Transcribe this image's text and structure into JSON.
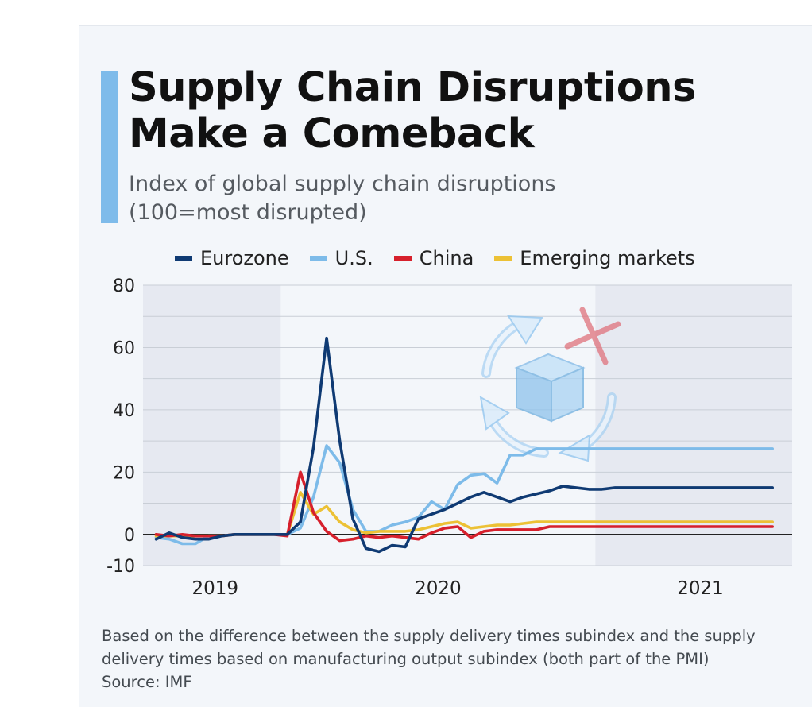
{
  "title_line1": "Supply Chain Disruptions",
  "title_line2": "Make a Comeback",
  "subtitle_line1": "Index of global supply chain disruptions",
  "subtitle_line2": "(100=most disrupted)",
  "note_line1": "Based on the difference between the supply delivery times subindex and the supply",
  "note_line2": "delivery times based on manufacturing output subindex (both part of the PMI)",
  "source": "Source: IMF",
  "colors": {
    "eurozone": "#0f3a73",
    "us": "#7dbbe9",
    "china": "#d6202c",
    "emerging": "#ecc135",
    "accent": "#7ebbea",
    "shade": "#e6e9f1"
  },
  "icon": "supply-chain-box-cycle-icon",
  "chart_data": {
    "type": "line",
    "ylim": [
      -10,
      80
    ],
    "yticks": [
      -10,
      0,
      20,
      40,
      60,
      80
    ],
    "x_tick_labels": [
      {
        "label": "2019",
        "x": 4.5
      },
      {
        "label": "2020",
        "x": 21.5
      },
      {
        "label": "2021",
        "x": 41.5
      }
    ],
    "shaded_x_ranges": [
      [
        -1,
        9.5
      ],
      [
        33.5,
        48.5
      ]
    ],
    "legend_position": "top",
    "grid": true,
    "x": [
      0,
      1,
      2,
      3,
      4,
      5,
      6,
      7,
      8,
      9,
      10,
      11,
      12,
      13,
      14,
      15,
      16,
      17,
      18,
      19,
      20,
      21,
      22,
      23,
      24,
      25,
      26,
      27,
      28,
      29,
      30,
      31,
      32,
      33,
      34,
      35,
      36,
      37,
      38,
      39,
      40,
      41,
      42,
      43,
      44,
      45,
      46,
      47
    ],
    "series": [
      {
        "name": "Eurozone",
        "key": "eurozone",
        "values": [
          -1.5,
          0.5,
          -1,
          -1.5,
          -1.5,
          -0.5,
          0,
          0,
          0,
          0,
          0,
          4,
          28,
          63,
          30,
          5,
          -4.5,
          -5.5,
          -3.5,
          -4,
          5,
          6.5,
          8,
          10,
          12,
          13.5,
          12,
          10.5,
          12,
          13,
          14,
          15.5,
          15,
          14.5,
          14.5,
          15,
          15,
          15,
          15,
          15,
          15,
          15,
          15,
          15,
          15,
          15,
          15,
          15
        ]
      },
      {
        "name": "U.S.",
        "key": "us",
        "values": [
          -1,
          -1.5,
          -3,
          -3,
          -0.5,
          -0.5,
          0,
          0,
          0,
          0,
          0,
          2,
          12,
          28.5,
          23,
          8,
          1,
          1,
          3,
          4,
          5.5,
          10.5,
          8,
          16,
          19,
          19.5,
          16.5,
          25.5,
          25.5,
          27.5,
          27.5,
          27.5,
          27.5,
          27.5,
          27.5,
          27.5,
          27.5,
          27.5,
          27.5,
          27.5,
          27.5,
          27.5,
          27.5,
          27.5,
          27.5,
          27.5,
          27.5,
          27.5
        ]
      },
      {
        "name": "China",
        "key": "china",
        "values": [
          0,
          -0.5,
          0,
          -0.5,
          -0.5,
          -0.5,
          0,
          0,
          0,
          0,
          -0.5,
          20,
          7,
          1,
          -2,
          -1.5,
          -0.5,
          -1,
          -0.5,
          -1,
          -1.5,
          0.5,
          2,
          2.5,
          -1,
          1,
          1.5,
          1.5,
          1.5,
          1.5,
          2.5,
          2.5,
          2.5,
          2.5,
          2.5,
          2.5,
          2.5,
          2.5,
          2.5,
          2.5,
          2.5,
          2.5,
          2.5,
          2.5,
          2.5,
          2.5,
          2.5,
          2.5
        ]
      },
      {
        "name": "Emerging markets",
        "key": "emerging",
        "values": [
          -0.5,
          -0.5,
          -0.5,
          -0.5,
          -0.5,
          -0.5,
          0,
          0,
          0,
          0,
          0,
          13.5,
          6.5,
          9,
          4,
          1.5,
          0.5,
          1,
          1,
          1,
          1.5,
          2.5,
          3.5,
          4,
          2,
          2.5,
          3,
          3,
          3.5,
          4,
          4,
          4,
          4,
          4,
          4,
          4,
          4,
          4,
          4,
          4,
          4,
          4,
          4,
          4,
          4,
          4,
          4,
          4
        ]
      }
    ]
  }
}
